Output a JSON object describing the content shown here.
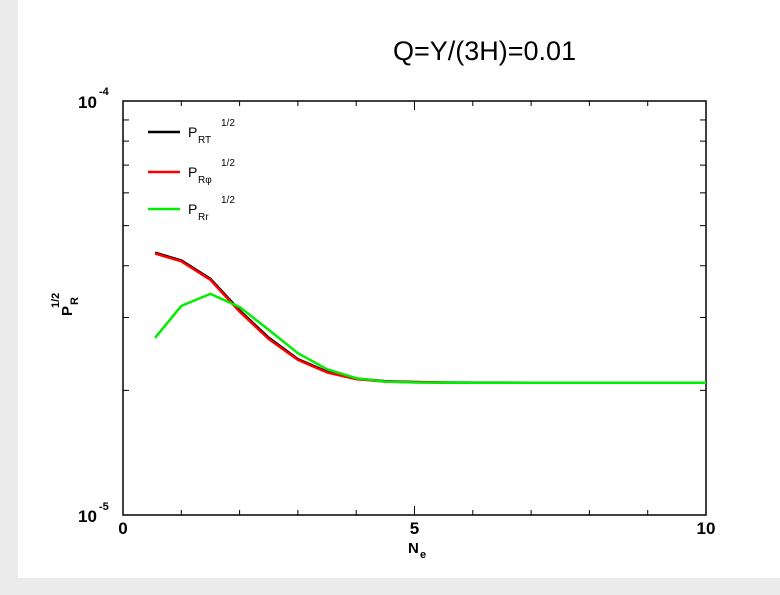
{
  "chart_data": {
    "type": "line",
    "title": "Q=Υ/(3H)=0.01",
    "xlabel": "N",
    "xlabel_sub": "e",
    "ylabel": "P",
    "ylabel_sub": "R",
    "ylabel_sup": "1/2",
    "xlim": [
      0,
      10
    ],
    "ylim": [
      1e-05,
      0.0001
    ],
    "yscale": "log",
    "xticks": [
      0,
      5,
      10
    ],
    "ytick_labels": [
      {
        "base": "10",
        "exp": "-4",
        "value": 0.0001
      },
      {
        "base": "10",
        "exp": "-5",
        "value": 1e-05
      }
    ],
    "legend_position": "top-left",
    "grid": false,
    "series": [
      {
        "name": "P",
        "name_sub": "RT",
        "name_sup": "1/2",
        "color": "#000000",
        "x": [
          0.55,
          1.0,
          1.5,
          2.0,
          2.5,
          3.0,
          3.5,
          4.0,
          4.5,
          5.0,
          5.5,
          6.0,
          7.0,
          8.0,
          9.0,
          10.0
        ],
        "y": [
          4.3e-05,
          4.12e-05,
          3.72e-05,
          3.12e-05,
          2.68e-05,
          2.38e-05,
          2.22e-05,
          2.135e-05,
          2.105e-05,
          2.095e-05,
          2.09e-05,
          2.088e-05,
          2.087e-05,
          2.087e-05,
          2.087e-05,
          2.087e-05
        ]
      },
      {
        "name": "P",
        "name_sub": "Rφ",
        "name_sup": "1/2",
        "color": "#ff0000",
        "x": [
          0.55,
          1.0,
          1.5,
          2.0,
          2.5,
          3.0,
          3.5,
          4.0,
          4.5,
          5.0,
          5.5
        ],
        "y": [
          4.28e-05,
          4.1e-05,
          3.7e-05,
          3.1e-05,
          2.66e-05,
          2.37e-05,
          2.21e-05,
          2.13e-05,
          2.1e-05,
          2.092e-05,
          2.088e-05
        ]
      },
      {
        "name": "P",
        "name_sub": "Rr",
        "name_sup": "1/2",
        "color": "#00ee00",
        "x": [
          0.55,
          1.0,
          1.5,
          2.0,
          2.5,
          3.0,
          3.5,
          4.0,
          4.5,
          5.0,
          6.0,
          7.0,
          8.0,
          9.0,
          10.0
        ],
        "y": [
          2.68e-05,
          3.2e-05,
          3.42e-05,
          3.18e-05,
          2.8e-05,
          2.46e-05,
          2.25e-05,
          2.14e-05,
          2.1e-05,
          2.09e-05,
          2.087e-05,
          2.087e-05,
          2.087e-05,
          2.087e-05,
          2.087e-05
        ]
      }
    ]
  }
}
